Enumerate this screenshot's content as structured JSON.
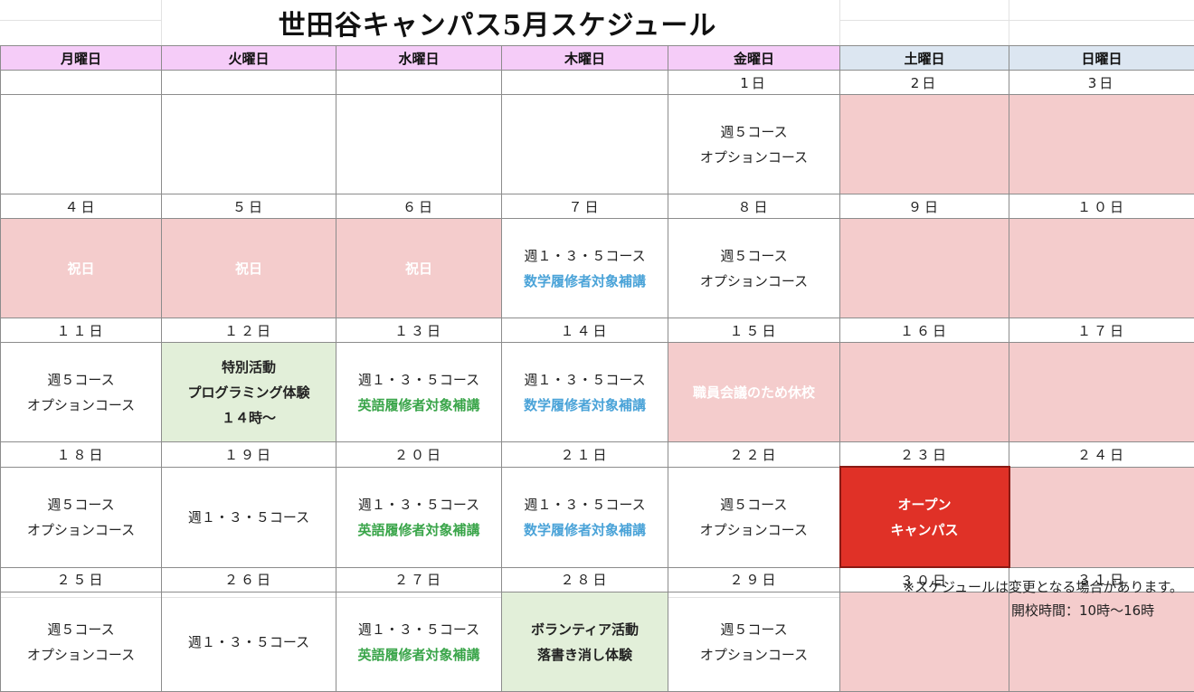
{
  "title": "世田谷キャンパス5月スケジュール",
  "days": [
    "月曜日",
    "火曜日",
    "水曜日",
    "木曜日",
    "金曜日",
    "土曜日",
    "日曜日"
  ],
  "weeks": [
    {
      "dates": [
        "",
        "",
        "",
        "",
        "1日",
        "2日",
        "3日"
      ],
      "cells": [
        {
          "lines": []
        },
        {
          "lines": []
        },
        {
          "lines": []
        },
        {
          "lines": []
        },
        {
          "lines": [
            {
              "text": "週５コース"
            },
            {
              "text": "オプションコース"
            }
          ]
        },
        {
          "bg": "pink",
          "lines": []
        },
        {
          "bg": "pink",
          "lines": []
        }
      ]
    },
    {
      "dates": [
        "４日",
        "５日",
        "６日",
        "７日",
        "８日",
        "９日",
        "１０日"
      ],
      "cells": [
        {
          "bg": "pink",
          "lines": [
            {
              "text": "祝日",
              "style": "holiday"
            }
          ]
        },
        {
          "bg": "pink",
          "lines": [
            {
              "text": "祝日",
              "style": "holiday"
            }
          ]
        },
        {
          "bg": "pink",
          "lines": [
            {
              "text": "祝日",
              "style": "holiday"
            }
          ]
        },
        {
          "lines": [
            {
              "text": "週１・３・５コース"
            },
            {
              "text": "数学履修者対象補講",
              "style": "blue"
            }
          ]
        },
        {
          "lines": [
            {
              "text": "週５コース"
            },
            {
              "text": "オプションコース"
            }
          ]
        },
        {
          "bg": "pink",
          "lines": []
        },
        {
          "bg": "pink",
          "lines": []
        }
      ]
    },
    {
      "dates": [
        "１１日",
        "１２日",
        "１３日",
        "１４日",
        "１５日",
        "１６日",
        "１７日"
      ],
      "cells": [
        {
          "lines": [
            {
              "text": "週５コース"
            },
            {
              "text": "オプションコース"
            }
          ]
        },
        {
          "bg": "green",
          "lines": [
            {
              "text": "特別活動"
            },
            {
              "text": "プログラミング体験"
            },
            {
              "text": "１４時～"
            }
          ]
        },
        {
          "lines": [
            {
              "text": "週１・３・５コース"
            },
            {
              "text": "英語履修者対象補講",
              "style": "green"
            }
          ]
        },
        {
          "lines": [
            {
              "text": "週１・３・５コース"
            },
            {
              "text": "数学履修者対象補講",
              "style": "blue"
            }
          ]
        },
        {
          "bg": "pink",
          "lines": [
            {
              "text": "職員会議のため休校",
              "style": "holiday"
            }
          ]
        },
        {
          "bg": "pink",
          "lines": []
        },
        {
          "bg": "pink",
          "lines": []
        }
      ]
    },
    {
      "dates": [
        "１８日",
        "１９日",
        "２０日",
        "２１日",
        "２２日",
        "２３日",
        "２４日"
      ],
      "cells": [
        {
          "lines": [
            {
              "text": "週５コース"
            },
            {
              "text": "オプションコース"
            }
          ]
        },
        {
          "lines": [
            {
              "text": "週１・３・５コース"
            }
          ]
        },
        {
          "lines": [
            {
              "text": "週１・３・５コース"
            },
            {
              "text": "英語履修者対象補講",
              "style": "green"
            }
          ]
        },
        {
          "lines": [
            {
              "text": "週１・３・５コース"
            },
            {
              "text": "数学履修者対象補講",
              "style": "blue"
            }
          ]
        },
        {
          "lines": [
            {
              "text": "週５コース"
            },
            {
              "text": "オプションコース"
            }
          ]
        },
        {
          "bg": "red",
          "lines": [
            {
              "text": "オープン"
            },
            {
              "text": "キャンパス"
            }
          ]
        },
        {
          "bg": "pink",
          "lines": []
        }
      ]
    },
    {
      "dates": [
        "２５日",
        "２６日",
        "２７日",
        "２８日",
        "２９日",
        "３０日",
        "３１日"
      ],
      "cells": [
        {
          "lines": [
            {
              "text": "週５コース"
            },
            {
              "text": "オプションコース"
            }
          ]
        },
        {
          "lines": [
            {
              "text": "週１・３・５コース"
            }
          ]
        },
        {
          "lines": [
            {
              "text": "週１・３・５コース"
            },
            {
              "text": "英語履修者対象補講",
              "style": "green"
            }
          ]
        },
        {
          "bg": "green",
          "lines": [
            {
              "text": "ボランティア活動"
            },
            {
              "text": "落書き消し体験"
            }
          ]
        },
        {
          "lines": [
            {
              "text": "週５コース"
            },
            {
              "text": "オプションコース"
            }
          ]
        },
        {
          "bg": "pink",
          "lines": []
        },
        {
          "bg": "pink",
          "lines": []
        }
      ]
    }
  ],
  "note": "※スケジュールは変更となる場合があります。",
  "hours": "開校時間：10時～16時"
}
